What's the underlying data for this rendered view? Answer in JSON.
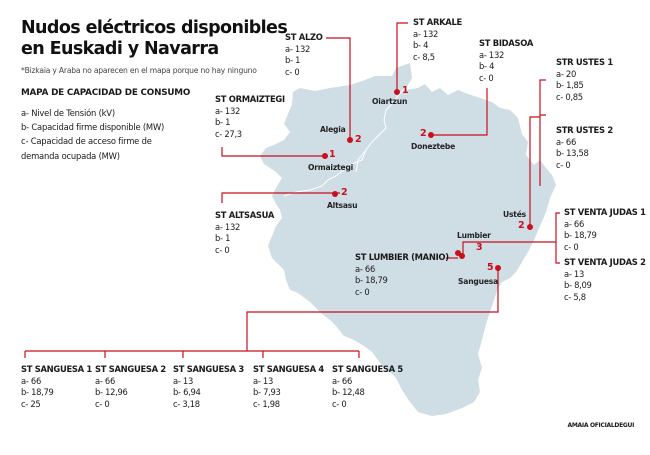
{
  "title_line1": "Nudos eléctricos disponibles",
  "title_line2": "en Euskadi y Navarra",
  "note": "*Bizkaia y Araba no aparecen en el mapa porque no hay ninguno",
  "legend": {
    "heading": "MAPA DE CAPACIDAD DE CONSUMO",
    "a": "a- Nivel de Tensión (kV)",
    "b": "b- Capacidad firme disponible (MW)",
    "c1": "c- Capacidad de acceso firme de",
    "c2": "demanda ocupada (MW)"
  },
  "colors": {
    "accent": "#c8101e",
    "land": "#cfdde5",
    "border": "#ffffff"
  },
  "towns": {
    "oiartzun": {
      "name": "Oiartzun",
      "count": "1"
    },
    "alegia": {
      "name": "Alegia",
      "count": "2"
    },
    "ormaiztegi": {
      "name": "Ormaiztegi",
      "count": "1"
    },
    "doneztebe": {
      "name": "Doneztebe",
      "count": "2"
    },
    "altsasu": {
      "name": "Altsasu",
      "count": "2"
    },
    "ustes": {
      "name": "Ustés",
      "count": "2"
    },
    "lumbier": {
      "name": "Lumbier",
      "count": "3"
    },
    "sanguesa": {
      "name": "Sanguesa",
      "count": "5"
    }
  },
  "substations": {
    "alzo": {
      "name": "ST ALZO",
      "a": "a- 132",
      "b": "b- 1",
      "c": "c- 0"
    },
    "arkale": {
      "name": "ST ARKALE",
      "a": "a- 132",
      "b": "b- 4",
      "c": "c- 8,5"
    },
    "bidasoa": {
      "name": "ST BIDASOA",
      "a": "a- 132",
      "b": "b- 4",
      "c": "c- 0"
    },
    "ustes1": {
      "name": "STR USTES 1",
      "a": "a- 20",
      "b": "b- 1,85",
      "c": "c- 0,85"
    },
    "ustes2": {
      "name": "STR USTES 2",
      "a": "a- 66",
      "b": "b- 13,58",
      "c": "c- 0"
    },
    "ormaiztegi": {
      "name": "ST ORMAIZTEGI",
      "a": "a- 132",
      "b": "b- 1",
      "c": "c- 27,3"
    },
    "altsasua": {
      "name": "ST ALTSASUA",
      "a": "a- 132",
      "b": "b- 1",
      "c": "c- 0"
    },
    "venta1": {
      "name": "ST VENTA JUDAS 1",
      "a": "a- 66",
      "b": "b- 18,79",
      "c": "c- 0"
    },
    "venta2": {
      "name": "ST VENTA JUDAS 2",
      "a": "a- 13",
      "b": "b- 8,09",
      "c": "c- 5,8"
    },
    "lumbier": {
      "name": "ST LUMBIER (MANIO)",
      "a": "a- 66",
      "b": "b- 18,79",
      "c": "c- 0"
    },
    "sanguesa": [
      {
        "name": "ST SANGUESA 1",
        "a": "a- 66",
        "b": "b- 18,79",
        "c": "c- 25"
      },
      {
        "name": "ST SANGUESA 2",
        "a": "a- 66",
        "b": "b- 12,96",
        "c": "c- 0"
      },
      {
        "name": "ST SANGUESA 3",
        "a": "a- 13",
        "b": "b- 6,94",
        "c": "c- 3,18"
      },
      {
        "name": "ST SANGUESA 4",
        "a": "a- 13",
        "b": "b- 7,93",
        "c": "c- 1,98"
      },
      {
        "name": "ST SANGUESA 5",
        "a": "a- 66",
        "b": "b- 12,48",
        "c": "c- 0"
      }
    ]
  },
  "credit": "AMAIA OFICIALDEGUI"
}
